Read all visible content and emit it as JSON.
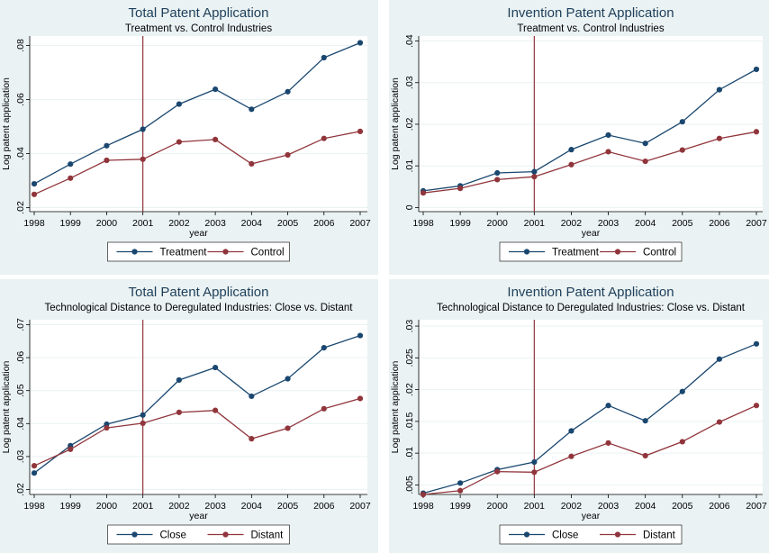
{
  "colors": {
    "outer_bg": "#eaf2f3",
    "plot_bg": "#ffffff",
    "grid": "#eaf2f3",
    "axis": "#000000",
    "title": "#1e3f5a",
    "treatment": "#1a476f",
    "control": "#90353b",
    "event_line": "#90353b"
  },
  "chart_data": [
    {
      "type": "line",
      "title": "Total Patent Application",
      "subtitle": "Treatment vs. Control Industries",
      "xlabel": "year",
      "ylabel": "Log patent application",
      "x": [
        1998,
        1999,
        2000,
        2001,
        2002,
        2003,
        2004,
        2005,
        2006,
        2007
      ],
      "xticks": [
        "1998",
        "1999",
        "2000",
        "2001",
        "2002",
        "2003",
        "2004",
        "2005",
        "2006",
        "2007"
      ],
      "ylim": [
        0.0185,
        0.0835
      ],
      "yticks": [
        0.02,
        0.04,
        0.06,
        0.08
      ],
      "ytick_labels": [
        ".02",
        ".04",
        ".06",
        ".08"
      ],
      "event_line_x": 2001,
      "grid": true,
      "legend_position": "bottom",
      "series": [
        {
          "name": "Treatment",
          "values": [
            0.0288,
            0.0361,
            0.0429,
            0.049,
            0.0583,
            0.0638,
            0.0564,
            0.0629,
            0.0755,
            0.081
          ]
        },
        {
          "name": "Control",
          "values": [
            0.0249,
            0.0309,
            0.0375,
            0.0379,
            0.0443,
            0.0452,
            0.0362,
            0.0395,
            0.0456,
            0.0482
          ]
        }
      ]
    },
    {
      "type": "line",
      "title": "Invention Patent Application",
      "subtitle": "Treatment vs. Control Industries",
      "xlabel": "year",
      "ylabel": "Log patent application",
      "x": [
        1998,
        1999,
        2000,
        2001,
        2002,
        2003,
        2004,
        2005,
        2006,
        2007
      ],
      "xticks": [
        "1998",
        "1999",
        "2000",
        "2001",
        "2002",
        "2003",
        "2004",
        "2005",
        "2006",
        "2007"
      ],
      "ylim": [
        -0.001,
        0.0412
      ],
      "yticks": [
        0,
        0.01,
        0.02,
        0.03,
        0.04
      ],
      "ytick_labels": [
        "0",
        ".01",
        ".02",
        ".03",
        ".04"
      ],
      "event_line_x": 2001,
      "grid": true,
      "legend_position": "bottom",
      "series": [
        {
          "name": "Treatment",
          "values": [
            0.004,
            0.0052,
            0.0083,
            0.0086,
            0.0139,
            0.0174,
            0.0154,
            0.0206,
            0.0283,
            0.0332
          ]
        },
        {
          "name": "Control",
          "values": [
            0.0035,
            0.0046,
            0.0067,
            0.0074,
            0.0103,
            0.0134,
            0.0111,
            0.0138,
            0.0166,
            0.0182
          ]
        }
      ]
    },
    {
      "type": "line",
      "title": "Total Patent Application",
      "subtitle": "Technological Distance to Deregulated Industries: Close vs. Distant",
      "xlabel": "year",
      "ylabel": "Log patent application",
      "x": [
        1998,
        1999,
        2000,
        2001,
        2002,
        2003,
        2004,
        2005,
        2006,
        2007
      ],
      "xticks": [
        "1998",
        "1999",
        "2000",
        "2001",
        "2002",
        "2003",
        "2004",
        "2005",
        "2006",
        "2007"
      ],
      "ylim": [
        0.0185,
        0.0715
      ],
      "yticks": [
        0.02,
        0.03,
        0.04,
        0.05,
        0.06,
        0.07
      ],
      "ytick_labels": [
        ".02",
        ".03",
        ".04",
        ".05",
        ".06",
        ".07"
      ],
      "event_line_x": 2001,
      "grid": true,
      "legend_position": "bottom",
      "series": [
        {
          "name": "Close",
          "values": [
            0.025,
            0.0333,
            0.0398,
            0.0426,
            0.0532,
            0.057,
            0.0483,
            0.0536,
            0.063,
            0.0667
          ]
        },
        {
          "name": "Distant",
          "values": [
            0.0272,
            0.0322,
            0.0387,
            0.0401,
            0.0434,
            0.044,
            0.0354,
            0.0386,
            0.0445,
            0.0476
          ]
        }
      ]
    },
    {
      "type": "line",
      "title": "Invention Patent Application",
      "subtitle": "Technological Distance to Deregulated Industries: Close vs. Distant",
      "xlabel": "year",
      "ylabel": "Log patent application",
      "x": [
        1998,
        1999,
        2000,
        2001,
        2002,
        2003,
        2004,
        2005,
        2006,
        2007
      ],
      "xticks": [
        "1998",
        "1999",
        "2000",
        "2001",
        "2002",
        "2003",
        "2004",
        "2005",
        "2006",
        "2007"
      ],
      "ylim": [
        0.0035,
        0.031
      ],
      "yticks": [
        0.005,
        0.01,
        0.015,
        0.02,
        0.025,
        0.03
      ],
      "ytick_labels": [
        ".005",
        ".01",
        ".015",
        ".02",
        ".025",
        ".03"
      ],
      "event_line_x": 2001,
      "grid": true,
      "legend_position": "bottom",
      "series": [
        {
          "name": "Close",
          "values": [
            0.0037,
            0.0053,
            0.0074,
            0.0086,
            0.0135,
            0.0175,
            0.0151,
            0.0197,
            0.0248,
            0.0272
          ]
        },
        {
          "name": "Distant",
          "values": [
            0.0035,
            0.0041,
            0.0071,
            0.007,
            0.0095,
            0.0116,
            0.0096,
            0.0118,
            0.0149,
            0.0175
          ]
        }
      ]
    }
  ]
}
